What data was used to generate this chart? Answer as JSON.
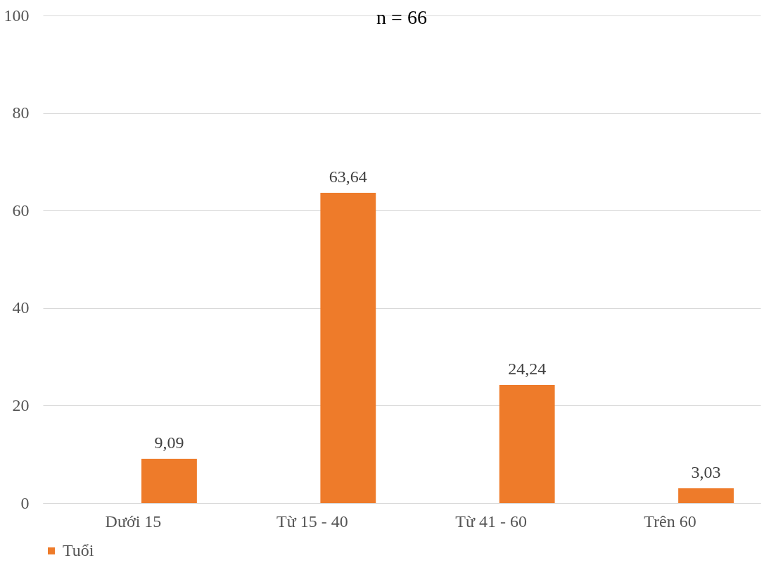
{
  "chart_data": {
    "type": "bar",
    "title": "n = 66",
    "categories": [
      "Dưới 15",
      "Từ 15 - 40",
      "Từ 41 - 60",
      "Trên 60"
    ],
    "series": [
      {
        "name": "Tuổi",
        "color": "#ee7b2a",
        "values": [
          9.09,
          63.64,
          24.24,
          3.03
        ],
        "value_labels": [
          "9,09",
          "63,64",
          "24,24",
          "3,03"
        ]
      }
    ],
    "ylim": [
      0,
      100
    ],
    "yticks": [
      0,
      20,
      40,
      60,
      80,
      100
    ],
    "grid": "y",
    "legend": "bottom"
  }
}
